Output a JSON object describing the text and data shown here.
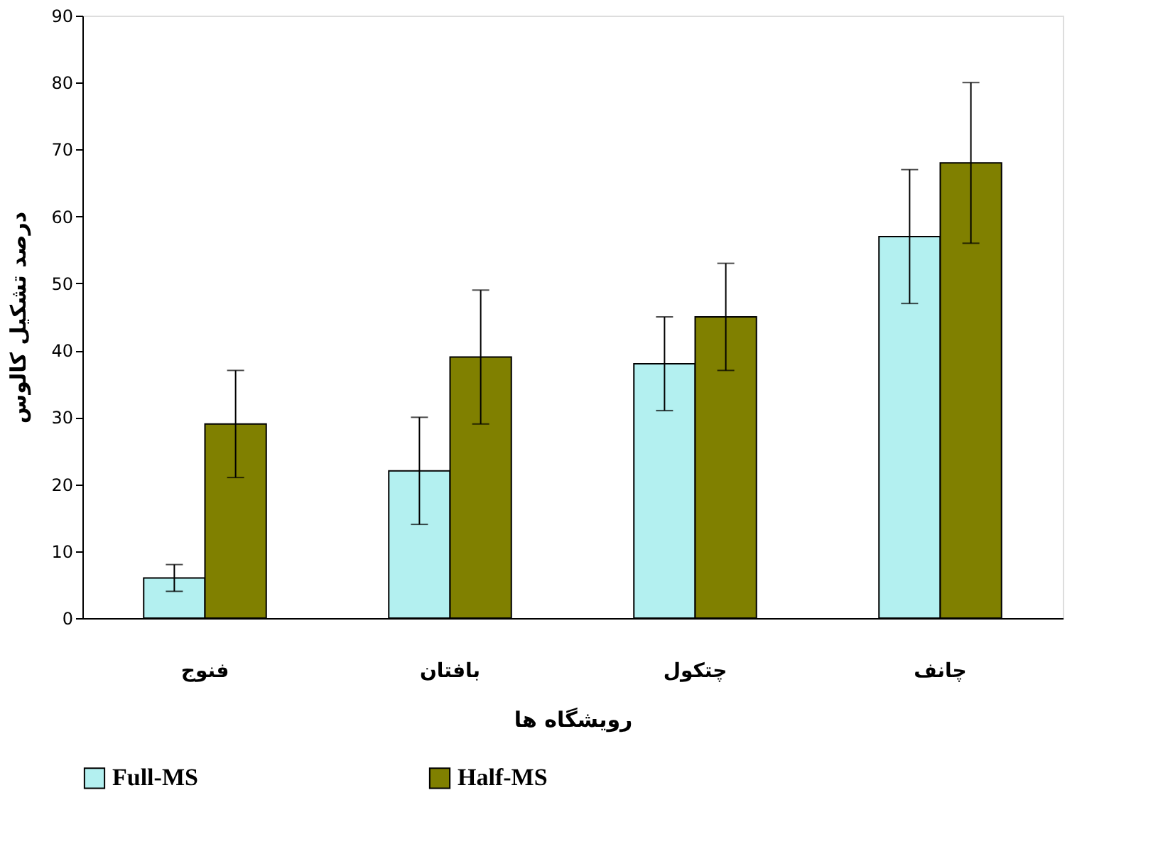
{
  "chart_data": {
    "type": "bar",
    "xlabel": "رویشگاه ها",
    "ylabel": "درصد تشکیل کالوس",
    "categories": [
      "فنوج",
      "بافتان",
      "چتکول",
      "چانف"
    ],
    "series": [
      {
        "name": "Full-MS",
        "color": "#b3f0f0",
        "values": [
          6,
          22,
          38,
          57
        ],
        "errors": [
          2,
          8,
          7,
          10
        ]
      },
      {
        "name": "Half-MS",
        "color": "#808000",
        "values": [
          29,
          39,
          45,
          68
        ],
        "errors": [
          8,
          10,
          8,
          12
        ]
      }
    ],
    "ylim": [
      0,
      90
    ],
    "yticks": [
      0,
      10,
      20,
      30,
      40,
      50,
      60,
      70,
      80,
      90
    ],
    "grid": false,
    "legend": "bottom"
  }
}
